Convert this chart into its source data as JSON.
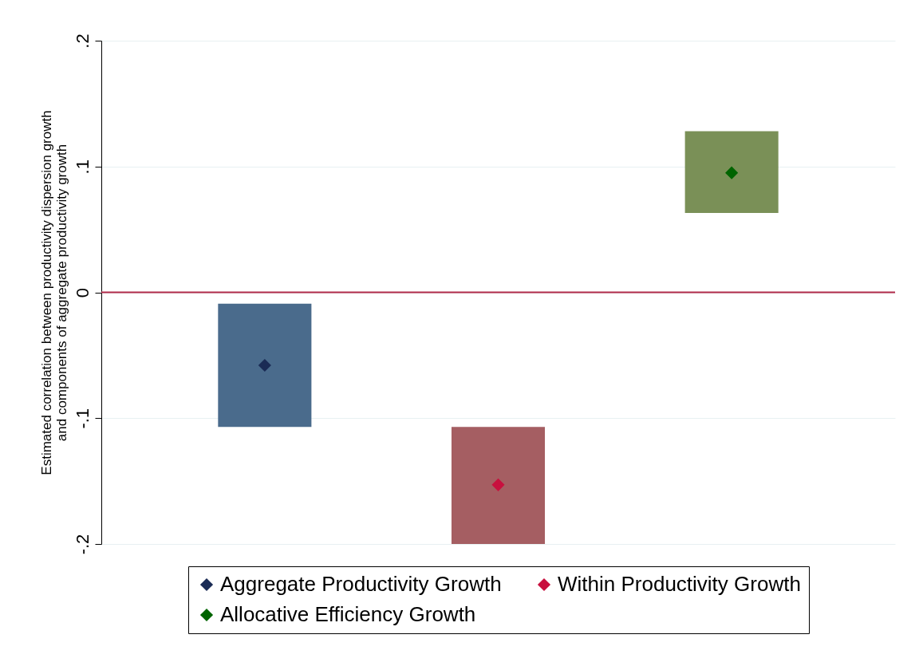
{
  "chart_data": {
    "type": "bar",
    "categories": [
      null,
      null,
      null
    ],
    "ylabel": "Estimated correlation between productivity dispersion growth\nand components of aggregate productivity growth",
    "ylim": [
      -0.2,
      0.2
    ],
    "yticks": [
      {
        "value": -0.2,
        "label": "-.2"
      },
      {
        "value": -0.1,
        "label": "-.1"
      },
      0,
      {
        "value": 0.1,
        "label": ".1"
      },
      {
        "value": 0.2,
        "label": ".2"
      }
    ],
    "grid": "y",
    "legend": "bottom",
    "marker": "diamond",
    "ref_lines": [
      {
        "axis": "y",
        "value": 0,
        "color": "#b22a4a"
      }
    ],
    "series": [
      {
        "type": "bar",
        "colors": [
          "#4a6b8c",
          "#a55e62",
          "#7a9057"
        ],
        "base": [
          -0.107,
          -0.2,
          0.063
        ],
        "values": [
          0.098,
          0.093,
          0.065
        ]
      },
      {
        "type": "scatter",
        "name": "Aggregate Productivity Growth",
        "color": "#1a2b55",
        "values": [
          -0.058,
          null,
          null
        ]
      },
      {
        "type": "scatter",
        "name": "Within Productivity Growth",
        "color": "#c8103e",
        "values": [
          null,
          -0.153,
          null
        ]
      },
      {
        "type": "scatter",
        "name": "Allocative Efficiency Growth",
        "color": "#006400",
        "values": [
          null,
          null,
          0.095
        ]
      }
    ]
  }
}
